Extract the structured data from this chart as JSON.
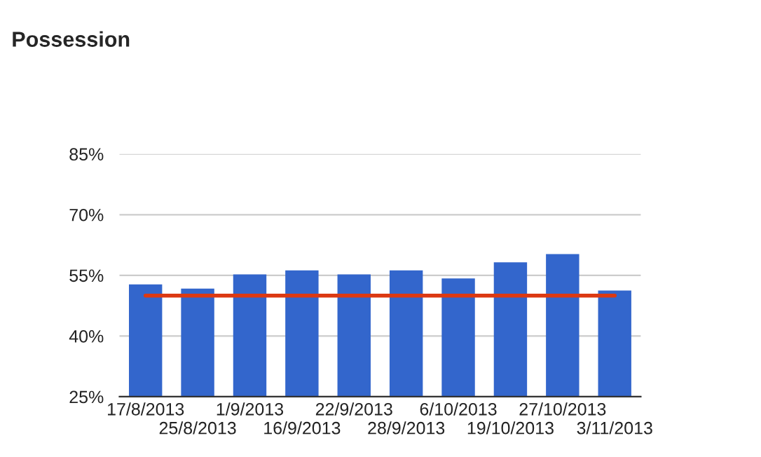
{
  "chart_data": {
    "type": "bar",
    "title": "Possession",
    "categories": [
      "17/8/2013",
      "25/8/2013",
      "1/9/2013",
      "16/9/2013",
      "22/9/2013",
      "28/9/2013",
      "6/10/2013",
      "19/10/2013",
      "27/10/2013",
      "3/11/2013"
    ],
    "series": [
      {
        "color": "#3366cc",
        "values": [
          52.5,
          51.5,
          55,
          56,
          55,
          56,
          54,
          58,
          60,
          51
        ]
      },
      {
        "type": "line",
        "color": "#dc3912",
        "values": [
          50,
          50,
          50,
          50,
          50,
          50,
          50,
          50,
          50,
          50
        ]
      }
    ],
    "ylim": [
      25,
      85
    ],
    "yticks": [
      {
        "value": 25,
        "label": "25%"
      },
      {
        "value": 40,
        "label": "40%"
      },
      {
        "value": 55,
        "label": "55%"
      },
      {
        "value": 70,
        "label": "70%"
      },
      {
        "value": 85,
        "label": "85%"
      }
    ],
    "grid": "y",
    "legend": false
  }
}
